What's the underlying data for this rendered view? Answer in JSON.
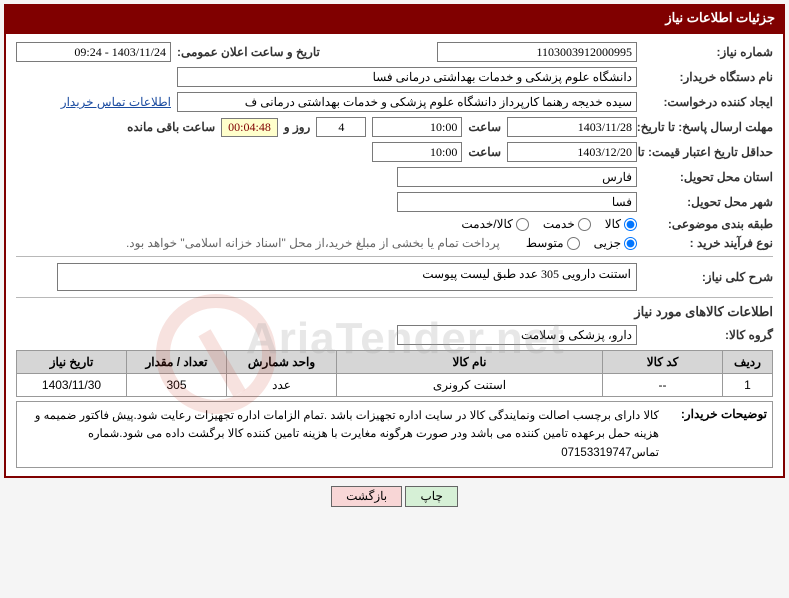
{
  "header": {
    "title": "جزئیات اطلاعات نیاز"
  },
  "fields": {
    "need_no_label": "شماره نیاز:",
    "need_no_value": "1103003912000995",
    "announce_label": "تاریخ و ساعت اعلان عمومی:",
    "announce_value": "1403/11/24 - 09:24",
    "buyer_org_label": "نام دستگاه خریدار:",
    "buyer_org_value": "دانشگاه علوم پزشکی و خدمات بهداشتی درمانی فسا",
    "creator_label": "ایجاد کننده درخواست:",
    "creator_value": "سیده خدیجه رهنما کارپرداز دانشگاه علوم پزشکی و خدمات بهداشتی درمانی ف",
    "contact_link": "اطلاعات تماس خریدار",
    "deadline_send_label": "مهلت ارسال پاسخ: تا تاریخ:",
    "deadline_send_date": "1403/11/28",
    "time_label": "ساعت",
    "deadline_send_time": "10:00",
    "days_label": "روز و",
    "days_value": "4",
    "timer_value": "00:04:48",
    "remaining_label": "ساعت باقی مانده",
    "min_valid_label": "حداقل تاریخ اعتبار قیمت: تا تاریخ:",
    "min_valid_date": "1403/12/20",
    "min_valid_time": "10:00",
    "province_label": "استان محل تحویل:",
    "province_value": "فارس",
    "city_label": "شهر محل تحویل:",
    "city_value": "فسا",
    "category_label": "طبقه بندی موضوعی:",
    "radio_kala": "کالا",
    "radio_service": "خدمت",
    "radio_both": "کالا/خدمت",
    "purchase_type_label": "نوع فرآیند خرید :",
    "radio_partial": "جزیی",
    "radio_medium": "متوسط",
    "purchase_note": "پرداخت تمام یا بخشی از مبلغ خرید،از محل \"اسناد خزانه اسلامی\" خواهد بود.",
    "general_desc_label": "شرح کلی نیاز:",
    "general_desc_value": "استنت دارویی 305 عدد طبق لیست پیوست",
    "goods_info_header": "اطلاعات کالاهای مورد نیاز",
    "group_label": "گروه کالا:",
    "group_value": "دارو، پزشکی و سلامت",
    "buyer_notes_label": "توضیحات خریدار:",
    "buyer_notes_text": "کالا دارای برچسب اصالت ونمایندگی کالا در سایت اداره تجهیزات باشد .تمام الزامات اداره تجهیزات رعایت شود.پیش فاکتور ضمیمه و هزینه حمل برعهده تامین کننده می باشد ودر صورت هرگونه مغایرت با هزینه تامین کننده کالا برگشت داده می شود.شماره تماس07153319747"
  },
  "table": {
    "headers": {
      "row": "ردیف",
      "code": "کد کالا",
      "name": "نام کالا",
      "unit": "واحد شمارش",
      "qty": "تعداد / مقدار",
      "date": "تاریخ نیاز"
    },
    "rows": [
      {
        "row": "1",
        "code": "--",
        "name": "استنت کرونری",
        "unit": "عدد",
        "qty": "305",
        "date": "1403/11/30"
      }
    ]
  },
  "buttons": {
    "print": "چاپ",
    "back": "بازگشت"
  }
}
